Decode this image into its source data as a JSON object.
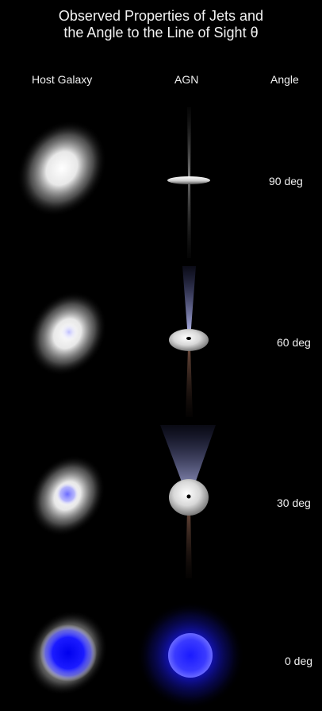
{
  "title": {
    "line1": "Observed Properties of Jets and",
    "line2": "the Angle to the Line of Sight  θ"
  },
  "headers": {
    "host": "Host Galaxy",
    "agn": "AGN",
    "angle": "Angle"
  },
  "rows": [
    {
      "angle_label": "90 deg"
    },
    {
      "angle_label": "60 deg"
    },
    {
      "angle_label": "30 deg"
    },
    {
      "angle_label": "0 deg"
    }
  ],
  "colors": {
    "background": "#000000",
    "galaxy_white": "#ffffff",
    "core_blue": "#1a1aff",
    "jet_blue": "#9aa0ff",
    "jet_brown": "#6b4a3a"
  }
}
